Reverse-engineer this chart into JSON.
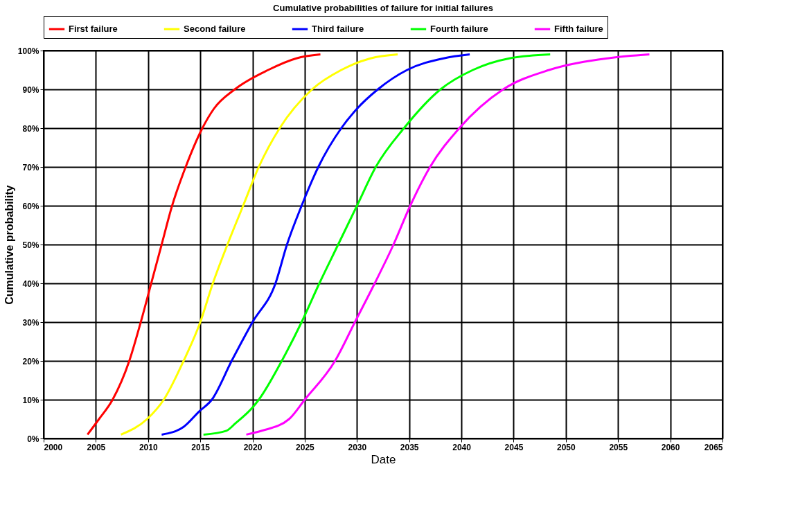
{
  "chart_data": {
    "type": "line",
    "title": "Cumulative probabilities of failure for initial failures",
    "xlabel": "Date",
    "ylabel": "Cumulative probability",
    "xlim": [
      2000,
      2065
    ],
    "xticks": [
      2000,
      2005,
      2010,
      2015,
      2020,
      2025,
      2030,
      2035,
      2040,
      2045,
      2050,
      2055,
      2060,
      2065
    ],
    "ylim": [
      0,
      100
    ],
    "yticks": [
      {
        "value": 0,
        "label": "0%"
      },
      {
        "value": 10,
        "label": "10%"
      },
      {
        "value": 20,
        "label": "20%"
      },
      {
        "value": 30,
        "label": "30%"
      },
      {
        "value": 40,
        "label": "40%"
      },
      {
        "value": 50,
        "label": "50%"
      },
      {
        "value": 60,
        "label": "60%"
      },
      {
        "value": 70,
        "label": "70%"
      },
      {
        "value": 80,
        "label": "80%"
      },
      {
        "value": 90,
        "label": "90%"
      },
      {
        "value": 100,
        "label": "100%"
      }
    ],
    "grid": true,
    "legend": "top",
    "marker": "none",
    "line_style": "solid",
    "series": [
      {
        "name": "First failure",
        "color": "#ff0000",
        "x": [
          2004.2,
          2005.3,
          2006.6,
          2008.2,
          2009.3,
          2010.3,
          2011.3,
          2012.3,
          2013.6,
          2015.2,
          2016.3,
          2018.3,
          2021.5,
          2024.2,
          2026.5
        ],
        "values": [
          1,
          5,
          10,
          20,
          30,
          40,
          50,
          60,
          70,
          80,
          85,
          90,
          95,
          98,
          99
        ]
      },
      {
        "name": "Second failure",
        "color": "#ffff00",
        "x": [
          2007.4,
          2009.9,
          2011.5,
          2013.4,
          2015.0,
          2016.2,
          2017.6,
          2019.1,
          2020.6,
          2022.6,
          2025.7,
          2028.5,
          2031.3,
          2033.9
        ],
        "values": [
          1,
          5,
          10,
          20,
          30,
          40,
          50,
          60,
          70,
          80,
          90,
          95,
          98,
          99
        ]
      },
      {
        "name": "Third failure",
        "color": "#0000ff",
        "x": [
          2011.3,
          2013.4,
          2014.9,
          2016.1,
          2018.0,
          2020.0,
          2022.2,
          2023.3,
          2024.7,
          2026.3,
          2028.5,
          2030.0,
          2032.0,
          2034.8,
          2038.3,
          2040.8
        ],
        "values": [
          1,
          3,
          7,
          10,
          20,
          30,
          40,
          50,
          60,
          70,
          80,
          85,
          90,
          95,
          98,
          99
        ]
      },
      {
        "name": "Fourth failure",
        "color": "#00ff00",
        "x": [
          2015.3,
          2017.5,
          2018.4,
          2020.0,
          2020.6,
          2022.8,
          2024.7,
          2026.4,
          2028.2,
          2030.0,
          2031.8,
          2034.5,
          2038.0,
          2041.1,
          2044.6,
          2048.5
        ],
        "values": [
          1,
          2,
          4,
          8,
          10,
          20,
          30,
          40,
          50,
          60,
          70,
          80,
          90,
          95,
          98,
          99
        ]
      },
      {
        "name": "Fifth failure",
        "color": "#ff00ff",
        "x": [
          2019.4,
          2020.9,
          2023.5,
          2025.0,
          2027.9,
          2029.8,
          2031.7,
          2033.5,
          2035.1,
          2037.0,
          2039.8,
          2044.0,
          2048.4,
          2054.0,
          2058.0
        ],
        "values": [
          1,
          2,
          5,
          10,
          20,
          30,
          40,
          50,
          60,
          70,
          80,
          90,
          95,
          98,
          99
        ]
      }
    ]
  }
}
